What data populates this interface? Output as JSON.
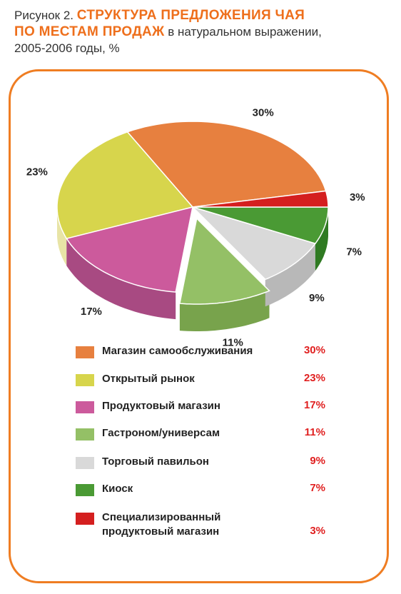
{
  "header": {
    "prefix": "Рисунок 2.",
    "title_line1": "СТРУКТУРА ПРЕДЛОЖЕНИЯ ЧАЯ",
    "title_line2": "ПО МЕСТАМ ПРОДАЖ",
    "subtitle_part1": "в натуральном выражении,",
    "subtitle_part2": "2005-2006 годы, %"
  },
  "chart_data": {
    "type": "pie",
    "title": "СТРУКТУРА ПРЕДЛОЖЕНИЯ ЧАЯ ПО МЕСТАМ ПРОДАЖ",
    "subtitle": "в натуральном выражении, 2005-2006 годы, %",
    "slices": [
      {
        "label": "Магазин самообслуживания",
        "value": 30,
        "value_label": "30%",
        "color": "#e7803f",
        "side_color": "#c96428"
      },
      {
        "label": "Открытый рынок",
        "value": 23,
        "value_label": "23%",
        "color": "#d7d54c",
        "side_color": "#e8e4a6"
      },
      {
        "label": "Продуктовый магазин",
        "value": 17,
        "value_label": "17%",
        "color": "#cc5a9c",
        "side_color": "#a84a82"
      },
      {
        "label": "Гастроном/универсам",
        "value": 11,
        "value_label": "11%",
        "color": "#94c066",
        "side_color": "#78a34c"
      },
      {
        "label": "Торговый павильон",
        "value": 9,
        "value_label": "9%",
        "color": "#d9d9d9",
        "side_color": "#b8b8b8"
      },
      {
        "label": "Киоск",
        "value": 7,
        "value_label": "7%",
        "color": "#4a9a34",
        "side_color": "#2f7a22"
      },
      {
        "label": "Специализированный продуктовый магазин",
        "value": 3,
        "value_label": "3%",
        "color": "#d41f1f",
        "side_color": "#a31414"
      }
    ],
    "legend_placement": "bottom",
    "value_color": "#e02020"
  }
}
